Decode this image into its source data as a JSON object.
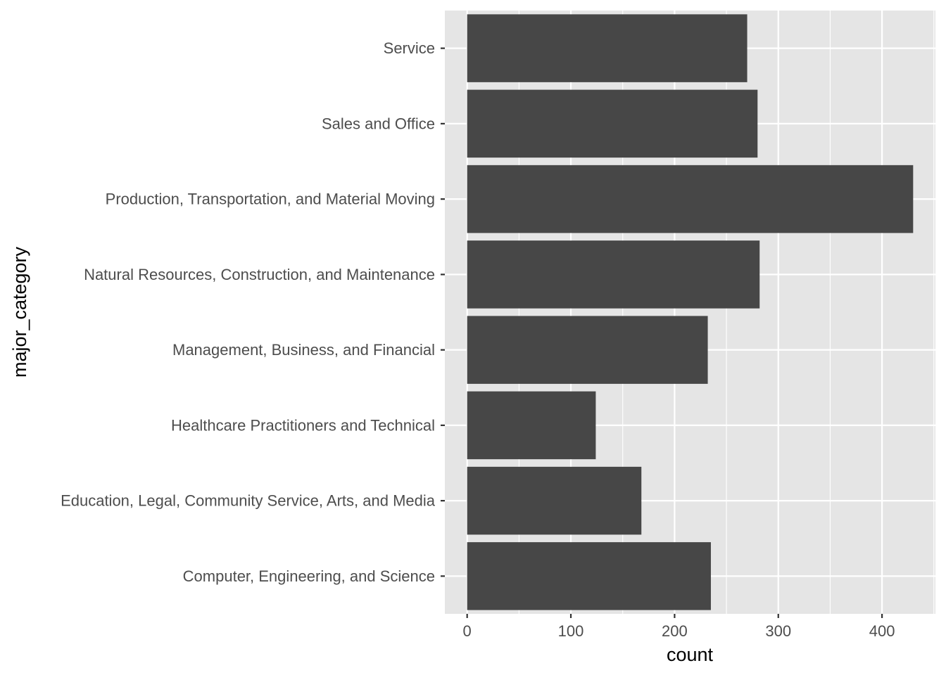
{
  "chart_data": {
    "type": "bar",
    "orientation": "horizontal",
    "categories": [
      "Computer, Engineering, and Science",
      "Education, Legal, Community Service, Arts, and Media",
      "Healthcare Practitioners and Technical",
      "Management, Business, and Financial",
      "Natural Resources, Construction, and Maintenance",
      "Production, Transportation, and Material Moving",
      "Sales and Office",
      "Service"
    ],
    "values": [
      235,
      168,
      124,
      232,
      282,
      430,
      280,
      270
    ],
    "xlabel": "count",
    "ylabel": "major_category",
    "xlim": [
      -21.5,
      451.5
    ],
    "xticks": [
      0,
      100,
      200,
      300,
      400
    ],
    "xtick_labels": [
      "0",
      "100",
      "200",
      "300",
      "400"
    ],
    "grid": true,
    "colors": {
      "bar": "#474747",
      "panel": "#e5e5e5",
      "grid": "#ffffff"
    }
  }
}
